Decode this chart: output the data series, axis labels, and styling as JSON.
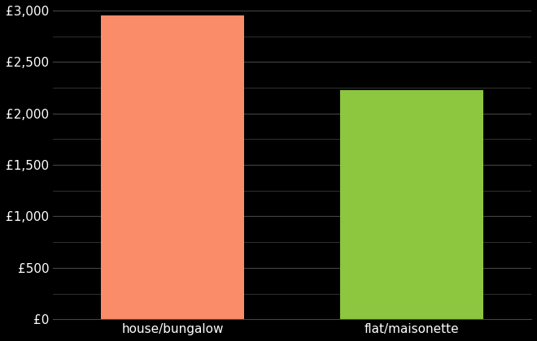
{
  "categories": [
    "house/bungalow",
    "flat/maisonette"
  ],
  "values": [
    2950,
    2230
  ],
  "bar_colors": [
    "#FA8C6A",
    "#8DC63F"
  ],
  "background_color": "#000000",
  "text_color": "#ffffff",
  "grid_color": "#444444",
  "ylim": [
    0,
    3000
  ],
  "yticks_major": [
    0,
    500,
    1000,
    1500,
    2000,
    2500,
    3000
  ],
  "yticks_minor": [
    250,
    750,
    1250,
    1750,
    2250,
    2750
  ],
  "ytick_labels": [
    "£0",
    "£500",
    "£1,000",
    "£1,500",
    "£2,000",
    "£2,500",
    "£3,000"
  ],
  "bar_positions": [
    1,
    2
  ],
  "bar_width": 0.6,
  "xlim": [
    0.5,
    2.5
  ],
  "tick_fontsize": 11
}
